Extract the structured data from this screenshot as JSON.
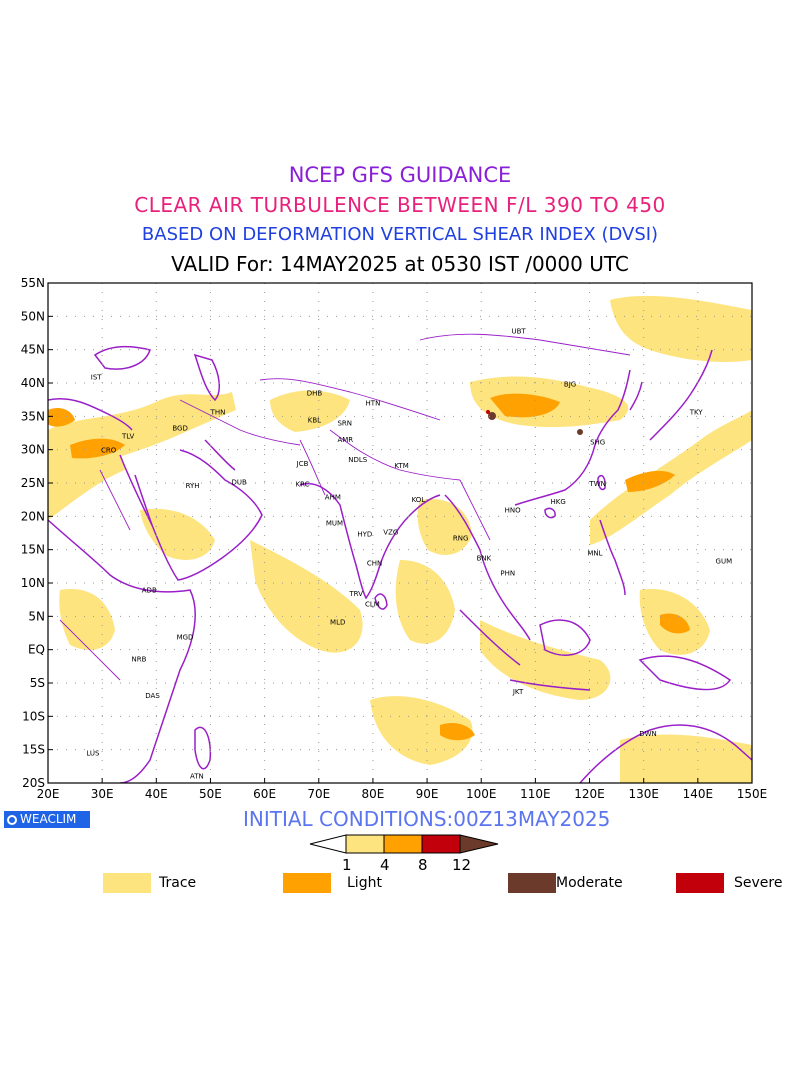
{
  "header": {
    "line1": "NCEP GFS GUIDANCE",
    "line2": "CLEAR AIR TURBULENCE BETWEEN F/L 390 TO 450",
    "line3": "BASED ON DEFORMATION VERTICAL SHEAR INDEX (DVSI)",
    "line4": "VALID For: 14MAY2025 at 0530 IST /0000 UTC"
  },
  "map": {
    "lon_range": [
      20,
      150
    ],
    "lat_range": [
      -20,
      55
    ],
    "x_ticks": [
      "20E",
      "30E",
      "40E",
      "50E",
      "60E",
      "70E",
      "80E",
      "90E",
      "100E",
      "110E",
      "120E",
      "130E",
      "140E",
      "150E"
    ],
    "y_ticks": [
      "55N",
      "50N",
      "45N",
      "40N",
      "35N",
      "30N",
      "25N",
      "20N",
      "15N",
      "10N",
      "5N",
      "EQ",
      "5S",
      "10S",
      "15S",
      "20S"
    ],
    "cities": [
      {
        "code": "UBT",
        "lon": 106.9,
        "lat": 47.9
      },
      {
        "code": "BJG",
        "lon": 116.4,
        "lat": 39.9
      },
      {
        "code": "TKY",
        "lon": 139.7,
        "lat": 35.7
      },
      {
        "code": "IST",
        "lon": 28.9,
        "lat": 41.0
      },
      {
        "code": "DHB",
        "lon": 69.2,
        "lat": 38.6
      },
      {
        "code": "THN",
        "lon": 51.4,
        "lat": 35.7
      },
      {
        "code": "HTN",
        "lon": 80.0,
        "lat": 37.1
      },
      {
        "code": "KBL",
        "lon": 69.2,
        "lat": 34.5
      },
      {
        "code": "SRN",
        "lon": 74.8,
        "lat": 34.1
      },
      {
        "code": "SHG",
        "lon": 121.5,
        "lat": 31.2
      },
      {
        "code": "BGD",
        "lon": 44.4,
        "lat": 33.3
      },
      {
        "code": "TLV",
        "lon": 34.8,
        "lat": 32.1
      },
      {
        "code": "AMR",
        "lon": 74.9,
        "lat": 31.6
      },
      {
        "code": "CRO",
        "lon": 31.2,
        "lat": 30.0
      },
      {
        "code": "NDLS",
        "lon": 77.2,
        "lat": 28.6
      },
      {
        "code": "JCB",
        "lon": 67.0,
        "lat": 28.0
      },
      {
        "code": "KTM",
        "lon": 85.3,
        "lat": 27.7
      },
      {
        "code": "TWN",
        "lon": 121.5,
        "lat": 25.0
      },
      {
        "code": "RYH",
        "lon": 46.7,
        "lat": 24.7
      },
      {
        "code": "DUB",
        "lon": 55.3,
        "lat": 25.2
      },
      {
        "code": "KRC",
        "lon": 67.0,
        "lat": 24.9
      },
      {
        "code": "AHM",
        "lon": 72.6,
        "lat": 23.0
      },
      {
        "code": "KOL",
        "lon": 88.4,
        "lat": 22.6
      },
      {
        "code": "HKG",
        "lon": 114.2,
        "lat": 22.3
      },
      {
        "code": "HNO",
        "lon": 105.8,
        "lat": 21.0
      },
      {
        "code": "MUM",
        "lon": 72.9,
        "lat": 19.1
      },
      {
        "code": "HYD",
        "lon": 78.5,
        "lat": 17.4
      },
      {
        "code": "VZG",
        "lon": 83.3,
        "lat": 17.7
      },
      {
        "code": "RNG",
        "lon": 96.2,
        "lat": 16.8
      },
      {
        "code": "BNK",
        "lon": 100.5,
        "lat": 13.8
      },
      {
        "code": "MNL",
        "lon": 121.0,
        "lat": 14.6
      },
      {
        "code": "GUM",
        "lon": 144.8,
        "lat": 13.4
      },
      {
        "code": "CHN",
        "lon": 80.3,
        "lat": 13.1
      },
      {
        "code": "PHN",
        "lon": 104.9,
        "lat": 11.6
      },
      {
        "code": "ADB",
        "lon": 38.7,
        "lat": 9.0
      },
      {
        "code": "TRV",
        "lon": 76.9,
        "lat": 8.5
      },
      {
        "code": "CLM",
        "lon": 79.9,
        "lat": 6.9
      },
      {
        "code": "MGD",
        "lon": 45.3,
        "lat": 2.0
      },
      {
        "code": "MLD",
        "lon": 73.5,
        "lat": 4.2
      },
      {
        "code": "NRB",
        "lon": 36.8,
        "lat": -1.3
      },
      {
        "code": "JKT",
        "lon": 106.8,
        "lat": -6.2
      },
      {
        "code": "DAS",
        "lon": 39.3,
        "lat": -6.8
      },
      {
        "code": "DWN",
        "lon": 130.8,
        "lat": -12.5
      },
      {
        "code": "LUS",
        "lon": 28.3,
        "lat": -15.4
      },
      {
        "code": "ATN",
        "lon": 47.5,
        "lat": -18.9
      }
    ]
  },
  "badge": "WEACLIM",
  "initial_conditions": "INITIAL CONDITIONS:00Z13MAY2025",
  "colorbar": {
    "ticks": [
      "1",
      "4",
      "8",
      "12"
    ],
    "colors": [
      "#ffffff",
      "#fde47f",
      "#ffa100",
      "#c1000c",
      "#6c3a2a"
    ]
  },
  "legend": [
    {
      "label": "Trace",
      "color": "#fde47f"
    },
    {
      "label": "Light",
      "color": "#ffa100"
    },
    {
      "label": "Moderate",
      "color": "#6c3a2a"
    },
    {
      "label": "Severe",
      "color": "#c1000c"
    }
  ],
  "colors": {
    "trace": "#fde47f",
    "light": "#ffa100",
    "moderate": "#6c3a2a",
    "severe": "#c1000c",
    "coast": "#9a1fc8",
    "frame": "#000000"
  }
}
